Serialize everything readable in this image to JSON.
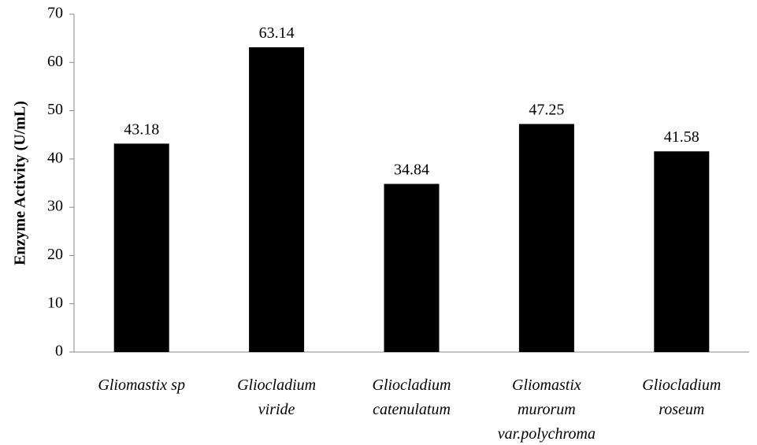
{
  "chart_data": {
    "type": "bar",
    "categories": [
      [
        "Gliomastix sp"
      ],
      [
        "Gliocladium",
        "viride"
      ],
      [
        "Gliocladium",
        "catenulatum"
      ],
      [
        "Gliomastix",
        "murorum",
        "var.polychroma"
      ],
      [
        "Gliocladium",
        "roseum"
      ]
    ],
    "values": [
      43.18,
      63.14,
      34.84,
      47.25,
      41.58
    ],
    "value_labels": [
      "43.18",
      "63.14",
      "34.84",
      "47.25",
      "41.58"
    ],
    "title": "",
    "xlabel": "",
    "ylabel": "Enzyme Activity (U/mL)",
    "ylim": [
      0,
      70
    ],
    "yticks": [
      "0",
      "10",
      "20",
      "30",
      "40",
      "50",
      "60",
      "70"
    ],
    "grid": false,
    "legend": "none",
    "bar_color": "#000000"
  }
}
